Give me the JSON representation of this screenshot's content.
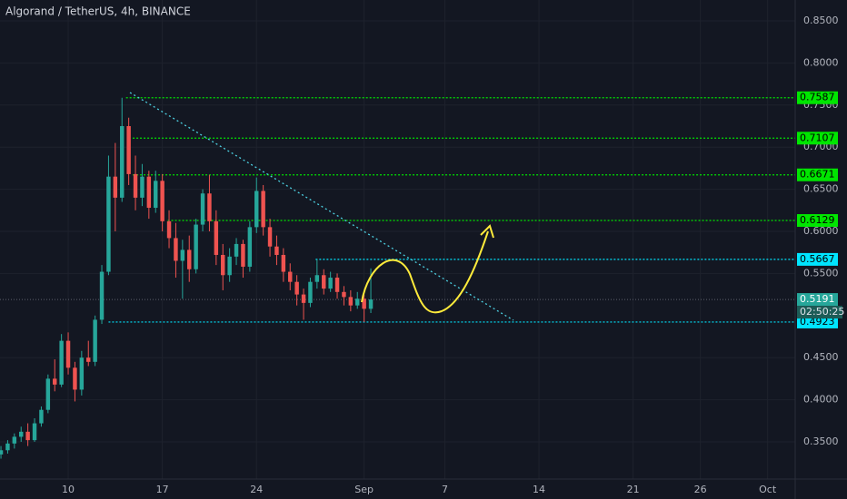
{
  "chart_data": {
    "type": "candlestick",
    "title": "Algorand / TetherUS, 4h, BINANCE",
    "up_color": "#26a69a",
    "down_color": "#ef5350",
    "xlim": [
      4.93,
      64.05
    ],
    "xticks": [
      10,
      17,
      24,
      {
        "value": 32,
        "label": "Sep"
      },
      {
        "value": 38,
        "label": "7"
      },
      {
        "value": 45,
        "label": "14"
      },
      {
        "value": 52,
        "label": "21"
      },
      {
        "value": 57,
        "label": "26"
      },
      {
        "value": 62,
        "label": "Oct"
      }
    ],
    "ylim": [
      0.3058,
      0.8748
    ],
    "yticks": [
      {
        "value": 0.35,
        "label": "0.3500"
      },
      {
        "value": 0.4,
        "label": "0.4000"
      },
      {
        "value": 0.45,
        "label": "0.4500"
      },
      {
        "value": 0.55,
        "label": "0.5500"
      },
      {
        "value": 0.6,
        "label": "0.6000"
      },
      {
        "value": 0.65,
        "label": "0.6500"
      },
      {
        "value": 0.7,
        "label": "0.7000"
      },
      {
        "value": 0.75,
        "label": "0.7500"
      },
      {
        "value": 0.8,
        "label": "0.8000"
      },
      {
        "value": 0.85,
        "label": "0.8500"
      }
    ],
    "grid": true,
    "x": [
      5,
      5.5,
      6,
      6.5,
      7,
      7.5,
      8,
      8.5,
      9,
      9.5,
      10,
      10.5,
      11,
      11.5,
      12,
      12.5,
      13,
      13.5,
      14,
      14.5,
      15,
      15.5,
      16,
      16.5,
      17,
      17.5,
      18,
      18.5,
      19,
      19.5,
      20,
      20.5,
      21,
      21.5,
      22,
      22.5,
      23,
      23.5,
      24,
      24.5,
      25,
      25.5,
      26,
      26.5,
      27,
      27.5,
      28,
      28.5,
      29,
      29.5,
      30,
      30.5,
      31,
      31.5,
      32,
      32.5
    ],
    "open": [
      0.335,
      0.34,
      0.348,
      0.356,
      0.362,
      0.352,
      0.372,
      0.388,
      0.425,
      0.418,
      0.47,
      0.438,
      0.412,
      0.45,
      0.445,
      0.495,
      0.552,
      0.665,
      0.64,
      0.725,
      0.668,
      0.64,
      0.665,
      0.628,
      0.66,
      0.612,
      0.592,
      0.565,
      0.578,
      0.555,
      0.608,
      0.645,
      0.612,
      0.572,
      0.548,
      0.57,
      0.585,
      0.558,
      0.605,
      0.648,
      0.605,
      0.582,
      0.572,
      0.552,
      0.54,
      0.525,
      0.515,
      0.54,
      0.548,
      0.532,
      0.545,
      0.528,
      0.522,
      0.512,
      0.52,
      0.508
    ],
    "high": [
      0.345,
      0.352,
      0.36,
      0.368,
      0.372,
      0.378,
      0.392,
      0.43,
      0.448,
      0.478,
      0.48,
      0.445,
      0.458,
      0.47,
      0.5,
      0.56,
      0.69,
      0.705,
      0.7587,
      0.735,
      0.69,
      0.68,
      0.672,
      0.672,
      0.668,
      0.625,
      0.61,
      0.59,
      0.595,
      0.615,
      0.65,
      0.6671,
      0.625,
      0.585,
      0.58,
      0.592,
      0.59,
      0.612,
      0.664,
      0.655,
      0.615,
      0.595,
      0.58,
      0.562,
      0.548,
      0.532,
      0.545,
      0.5667,
      0.555,
      0.552,
      0.55,
      0.535,
      0.53,
      0.528,
      0.525,
      0.556
    ],
    "low": [
      0.33,
      0.336,
      0.342,
      0.35,
      0.345,
      0.35,
      0.368,
      0.384,
      0.41,
      0.415,
      0.43,
      0.398,
      0.405,
      0.44,
      0.44,
      0.49,
      0.548,
      0.6,
      0.635,
      0.655,
      0.625,
      0.63,
      0.615,
      0.622,
      0.6,
      0.58,
      0.545,
      0.52,
      0.54,
      0.55,
      0.6,
      0.6,
      0.56,
      0.53,
      0.54,
      0.56,
      0.545,
      0.552,
      0.598,
      0.595,
      0.57,
      0.56,
      0.54,
      0.53,
      0.512,
      0.495,
      0.51,
      0.532,
      0.525,
      0.528,
      0.52,
      0.512,
      0.505,
      0.508,
      0.4923,
      0.503
    ],
    "close": [
      0.34,
      0.348,
      0.356,
      0.362,
      0.352,
      0.372,
      0.388,
      0.425,
      0.418,
      0.47,
      0.438,
      0.412,
      0.45,
      0.445,
      0.495,
      0.552,
      0.665,
      0.64,
      0.725,
      0.668,
      0.64,
      0.665,
      0.628,
      0.66,
      0.612,
      0.592,
      0.565,
      0.578,
      0.555,
      0.608,
      0.645,
      0.612,
      0.572,
      0.548,
      0.57,
      0.585,
      0.558,
      0.605,
      0.648,
      0.605,
      0.582,
      0.572,
      0.552,
      0.54,
      0.525,
      0.515,
      0.54,
      0.548,
      0.532,
      0.545,
      0.528,
      0.522,
      0.512,
      0.52,
      0.508,
      0.5191
    ],
    "levels": [
      {
        "value": 0.7587,
        "color": "#00e600",
        "x0": 14.3
      },
      {
        "value": 0.7107,
        "color": "#00e600",
        "x0": 14.8
      },
      {
        "value": 0.6671,
        "color": "#00e600",
        "x0": 14.8
      },
      {
        "value": 0.6129,
        "color": "#00e600",
        "x0": 17.4
      },
      {
        "value": 0.5667,
        "color": "#00e5ff",
        "x0": 28.4
      },
      {
        "value": 0.4923,
        "color": "#00e5ff",
        "x0": 13
      }
    ],
    "current": {
      "value": 0.5191,
      "color": "#26a69a"
    },
    "countdown": "02:50:25"
  }
}
